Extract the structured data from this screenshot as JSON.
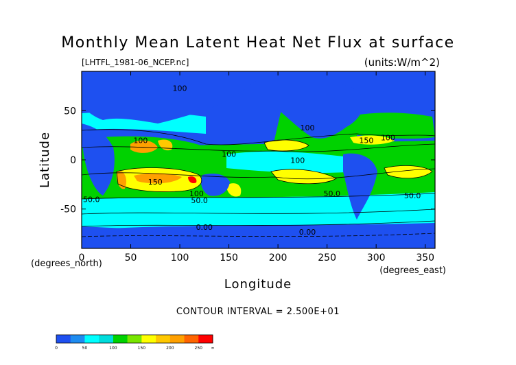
{
  "chart_data": {
    "type": "heatmap",
    "title": "Monthly Mean Latent Heat Net Flux at surface",
    "subtitle": "[LHTFL_1981-06_NCEP.nc]",
    "units_label": "(units:W/m^2)",
    "xlabel": "Longitude",
    "ylabel": "Latitude",
    "x_unit_label": "(degrees_east)",
    "y_unit_label": "(degrees_north)",
    "xlim": [
      0,
      360
    ],
    "ylim": [
      -90,
      90
    ],
    "x_ticks": [
      0,
      50,
      100,
      150,
      200,
      250,
      300,
      350
    ],
    "y_ticks": [
      -50,
      0,
      50
    ],
    "contour_interval": "CONTOUR INTERVAL = 2.500E+01",
    "colorbar": {
      "levels": [
        0,
        25,
        50,
        75,
        100,
        125,
        150,
        175,
        200,
        225,
        250,
        275
      ],
      "labels": [
        "0",
        "50",
        "100",
        "150",
        "200",
        "250",
        "∞"
      ],
      "colors": [
        "#1e50f0",
        "#1e8cf0",
        "#00ffff",
        "#00dcdc",
        "#00d200",
        "#78e600",
        "#ffff00",
        "#ffc800",
        "#ffa000",
        "#ff6400",
        "#ff0000"
      ]
    },
    "contour_labels": [
      {
        "text": "50.0",
        "x": 10,
        "y": -43
      },
      {
        "text": "100",
        "x": 100,
        "y": 70
      },
      {
        "text": "100",
        "x": 60,
        "y": 17
      },
      {
        "text": "150",
        "x": 75,
        "y": -25
      },
      {
        "text": "150",
        "x": 290,
        "y": 17
      },
      {
        "text": "100",
        "x": 230,
        "y": 30
      },
      {
        "text": "100",
        "x": 150,
        "y": 3
      },
      {
        "text": "100",
        "x": 220,
        "y": -3
      },
      {
        "text": "100",
        "x": 312,
        "y": 20
      },
      {
        "text": "100",
        "x": 117,
        "y": -37
      },
      {
        "text": "50.0",
        "x": 120,
        "y": -44
      },
      {
        "text": "50.0",
        "x": 255,
        "y": -37
      },
      {
        "text": "50.0",
        "x": 337,
        "y": -39
      },
      {
        "text": "0.00",
        "x": 125,
        "y": -71
      },
      {
        "text": "0.00",
        "x": 230,
        "y": -76
      }
    ]
  }
}
